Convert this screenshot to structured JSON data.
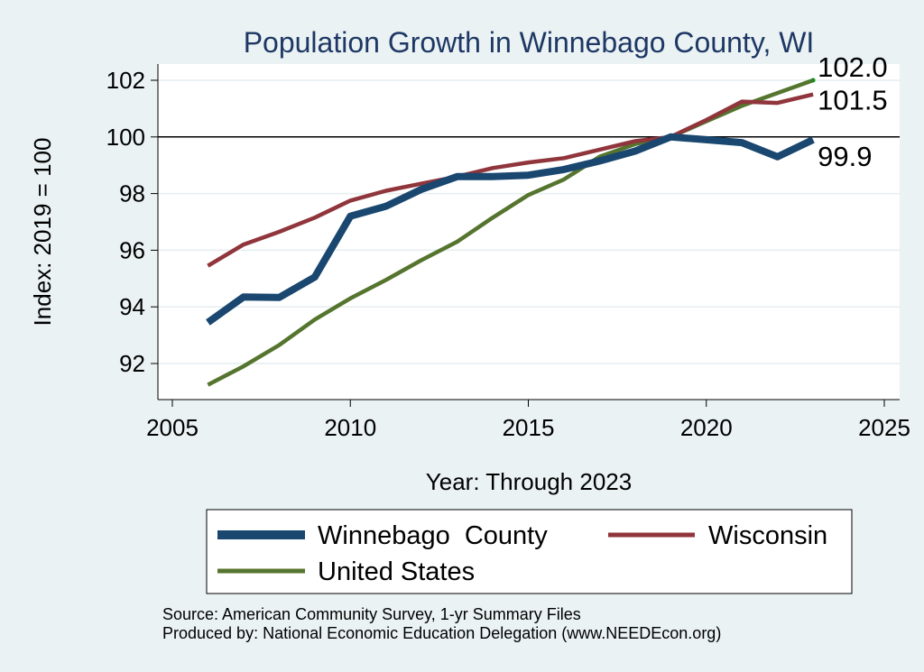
{
  "chart_data": {
    "type": "line",
    "title": "Population Growth in Winnebago County, WI",
    "xlabel": "Year: Through 2023",
    "ylabel": "Index: 2019 = 100",
    "xlim": [
      2005,
      2025
    ],
    "ylim": [
      91.2,
      102.6
    ],
    "x_ticks": [
      2005,
      2010,
      2015,
      2020,
      2025
    ],
    "y_ticks": [
      92,
      94,
      96,
      98,
      100,
      102
    ],
    "grid": true,
    "reference_line": 100,
    "legend_position": "bottom",
    "x": [
      2006,
      2007,
      2008,
      2009,
      2010,
      2011,
      2012,
      2013,
      2014,
      2015,
      2016,
      2017,
      2018,
      2019,
      2020,
      2021,
      2022,
      2023
    ],
    "series": [
      {
        "name": "Winnebago  County",
        "color": "#1a476f",
        "values": [
          93.45,
          94.35,
          94.33,
          95.05,
          97.2,
          97.55,
          98.15,
          98.6,
          98.6,
          98.65,
          98.85,
          99.15,
          99.5,
          100.0,
          99.9,
          99.8,
          99.3,
          99.9
        ],
        "end_label": "99.9"
      },
      {
        "name": "Wisconsin",
        "color": "#90353b",
        "values": [
          95.45,
          96.2,
          96.65,
          97.15,
          97.75,
          98.1,
          98.35,
          98.6,
          98.9,
          99.1,
          99.25,
          99.55,
          99.85,
          100.0,
          100.6,
          101.25,
          101.2,
          101.5
        ],
        "end_label": "101.5"
      },
      {
        "name": "United States",
        "color": "#55752f",
        "values": [
          91.25,
          91.9,
          92.65,
          93.55,
          94.3,
          94.95,
          95.65,
          96.3,
          97.15,
          97.95,
          98.5,
          99.3,
          99.75,
          100.0,
          100.55,
          101.1,
          101.55,
          102.0
        ],
        "end_label": "102.0"
      }
    ]
  },
  "footer": {
    "source": "Source: American Community Survey, 1-yr Summary Files",
    "produced": "Produced by: National Economic Education Delegation (www.NEEDEcon.org)"
  }
}
